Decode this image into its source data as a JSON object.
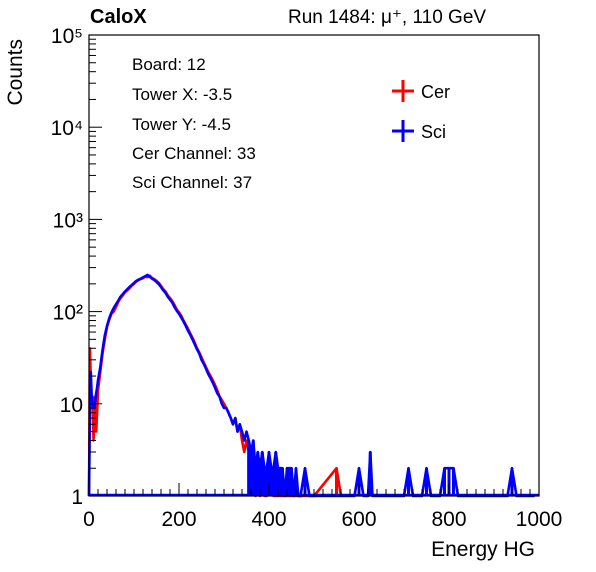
{
  "header": {
    "experiment": "CaloX",
    "run_info": "Run 1484:   μ⁺, 110 GeV"
  },
  "info_box": [
    "Board: 12",
    "Tower X: -3.5",
    "Tower Y: -4.5",
    "Cer Channel: 33",
    "Sci Channel: 37"
  ],
  "chart_data": {
    "type": "histogram",
    "xlabel": "Energy HG",
    "ylabel": "Counts",
    "xlim": [
      0,
      1000
    ],
    "ylim": [
      1,
      100000
    ],
    "yscale": "log",
    "xticks": [
      0,
      200,
      400,
      600,
      800,
      1000
    ],
    "xtick_labels": [
      "0",
      "200",
      "400",
      "600",
      "800",
      "1000"
    ],
    "yticks": [
      1,
      10,
      100,
      1000,
      10000,
      100000
    ],
    "ytick_labels": [
      "1",
      "10",
      "10²",
      "10³",
      "10⁴",
      "10⁵"
    ],
    "legend_position": "top-right",
    "series": [
      {
        "name": "Cer",
        "color": "#ff0000",
        "points": [
          [
            0,
            1
          ],
          [
            2,
            40
          ],
          [
            4,
            18
          ],
          [
            6,
            9
          ],
          [
            8,
            12
          ],
          [
            10,
            4
          ],
          [
            12,
            7
          ],
          [
            14,
            12
          ],
          [
            16,
            5
          ],
          [
            18,
            8
          ],
          [
            20,
            14
          ],
          [
            25,
            22
          ],
          [
            30,
            35
          ],
          [
            35,
            50
          ],
          [
            40,
            68
          ],
          [
            45,
            82
          ],
          [
            50,
            95
          ],
          [
            55,
            100
          ],
          [
            60,
            112
          ],
          [
            65,
            128
          ],
          [
            70,
            140
          ],
          [
            75,
            150
          ],
          [
            80,
            162
          ],
          [
            85,
            170
          ],
          [
            90,
            180
          ],
          [
            95,
            192
          ],
          [
            100,
            200
          ],
          [
            105,
            212
          ],
          [
            110,
            220
          ],
          [
            115,
            225
          ],
          [
            120,
            230
          ],
          [
            125,
            240
          ],
          [
            130,
            236
          ],
          [
            135,
            245
          ],
          [
            140,
            232
          ],
          [
            145,
            225
          ],
          [
            150,
            215
          ],
          [
            155,
            205
          ],
          [
            160,
            190
          ],
          [
            165,
            175
          ],
          [
            170,
            165
          ],
          [
            175,
            150
          ],
          [
            180,
            140
          ],
          [
            185,
            130
          ],
          [
            190,
            118
          ],
          [
            195,
            105
          ],
          [
            200,
            98
          ],
          [
            205,
            90
          ],
          [
            210,
            80
          ],
          [
            215,
            72
          ],
          [
            220,
            65
          ],
          [
            225,
            58
          ],
          [
            230,
            52
          ],
          [
            235,
            46
          ],
          [
            240,
            40
          ],
          [
            245,
            36
          ],
          [
            250,
            32
          ],
          [
            255,
            28
          ],
          [
            260,
            25
          ],
          [
            265,
            22
          ],
          [
            270,
            20
          ],
          [
            275,
            18
          ],
          [
            280,
            16
          ],
          [
            285,
            14
          ],
          [
            290,
            12
          ],
          [
            295,
            11
          ],
          [
            300,
            10
          ],
          [
            305,
            9
          ],
          [
            310,
            8
          ],
          [
            315,
            7
          ],
          [
            320,
            6
          ],
          [
            325,
            7
          ],
          [
            330,
            5
          ],
          [
            335,
            6
          ],
          [
            340,
            4
          ],
          [
            345,
            3
          ],
          [
            350,
            4
          ],
          [
            355,
            3
          ],
          [
            360,
            2
          ],
          [
            365,
            3
          ],
          [
            370,
            1
          ],
          [
            375,
            2
          ],
          [
            380,
            1
          ],
          [
            385,
            2
          ],
          [
            390,
            1
          ],
          [
            395,
            1
          ],
          [
            400,
            2
          ],
          [
            410,
            1
          ],
          [
            420,
            1
          ],
          [
            430,
            1
          ],
          [
            440,
            1
          ],
          [
            450,
            1
          ],
          [
            460,
            1
          ],
          [
            470,
            1
          ],
          [
            480,
            1
          ],
          [
            490,
            1
          ],
          [
            500,
            1
          ],
          [
            550,
            2
          ],
          [
            560,
            1
          ]
        ]
      },
      {
        "name": "Sci",
        "color": "#0000ff",
        "points": [
          [
            0,
            1
          ],
          [
            2,
            8
          ],
          [
            4,
            22
          ],
          [
            6,
            12
          ],
          [
            8,
            10
          ],
          [
            10,
            9
          ],
          [
            12,
            9
          ],
          [
            14,
            11
          ],
          [
            16,
            13
          ],
          [
            18,
            15
          ],
          [
            20,
            18
          ],
          [
            25,
            25
          ],
          [
            30,
            38
          ],
          [
            35,
            55
          ],
          [
            40,
            70
          ],
          [
            45,
            85
          ],
          [
            50,
            98
          ],
          [
            55,
            110
          ],
          [
            60,
            120
          ],
          [
            65,
            132
          ],
          [
            70,
            145
          ],
          [
            75,
            155
          ],
          [
            80,
            165
          ],
          [
            85,
            175
          ],
          [
            90,
            185
          ],
          [
            95,
            195
          ],
          [
            100,
            205
          ],
          [
            105,
            215
          ],
          [
            110,
            222
          ],
          [
            115,
            228
          ],
          [
            120,
            235
          ],
          [
            125,
            242
          ],
          [
            130,
            250
          ],
          [
            135,
            238
          ],
          [
            140,
            228
          ],
          [
            145,
            220
          ],
          [
            150,
            210
          ],
          [
            155,
            198
          ],
          [
            160,
            185
          ],
          [
            165,
            170
          ],
          [
            170,
            160
          ],
          [
            175,
            145
          ],
          [
            180,
            135
          ],
          [
            185,
            125
          ],
          [
            190,
            112
          ],
          [
            195,
            102
          ],
          [
            200,
            95
          ],
          [
            205,
            86
          ],
          [
            210,
            78
          ],
          [
            215,
            70
          ],
          [
            220,
            62
          ],
          [
            225,
            56
          ],
          [
            230,
            50
          ],
          [
            235,
            44
          ],
          [
            240,
            39
          ],
          [
            245,
            35
          ],
          [
            250,
            30
          ],
          [
            255,
            27
          ],
          [
            260,
            24
          ],
          [
            265,
            21
          ],
          [
            270,
            19
          ],
          [
            275,
            17
          ],
          [
            280,
            15
          ],
          [
            285,
            13
          ],
          [
            290,
            12
          ],
          [
            295,
            10
          ],
          [
            300,
            9
          ],
          [
            305,
            9
          ],
          [
            310,
            8
          ],
          [
            315,
            7
          ],
          [
            320,
            6
          ],
          [
            325,
            7
          ],
          [
            330,
            5
          ],
          [
            335,
            6
          ],
          [
            340,
            5
          ],
          [
            345,
            4
          ],
          [
            350,
            5
          ],
          [
            355,
            4
          ],
          [
            360,
            3
          ],
          [
            365,
            4
          ],
          [
            370,
            2
          ],
          [
            375,
            3
          ],
          [
            380,
            2
          ],
          [
            385,
            3
          ],
          [
            390,
            2
          ],
          [
            395,
            2
          ],
          [
            400,
            3
          ],
          [
            405,
            2
          ],
          [
            410,
            2
          ],
          [
            415,
            3
          ],
          [
            420,
            2
          ],
          [
            425,
            2
          ],
          [
            430,
            2
          ],
          [
            435,
            1
          ],
          [
            440,
            2
          ],
          [
            445,
            2
          ],
          [
            450,
            2
          ],
          [
            455,
            1
          ],
          [
            460,
            2
          ],
          [
            465,
            1
          ],
          [
            470,
            1
          ],
          [
            480,
            2
          ],
          [
            490,
            1
          ],
          [
            500,
            1
          ],
          [
            510,
            1
          ],
          [
            520,
            1
          ],
          [
            530,
            1
          ],
          [
            540,
            1
          ],
          [
            550,
            1
          ],
          [
            560,
            1
          ],
          [
            570,
            1
          ],
          [
            580,
            1
          ],
          [
            590,
            1
          ],
          [
            600,
            2
          ],
          [
            610,
            1
          ],
          [
            620,
            1
          ],
          [
            625,
            3
          ],
          [
            630,
            1
          ],
          [
            640,
            1
          ],
          [
            650,
            1
          ],
          [
            660,
            1
          ],
          [
            670,
            1
          ],
          [
            680,
            1
          ],
          [
            690,
            1
          ],
          [
            700,
            1
          ],
          [
            710,
            2
          ],
          [
            720,
            1
          ],
          [
            730,
            1
          ],
          [
            740,
            1
          ],
          [
            750,
            2
          ],
          [
            760,
            1
          ],
          [
            770,
            1
          ],
          [
            780,
            1
          ],
          [
            790,
            2
          ],
          [
            800,
            2
          ],
          [
            810,
            2
          ],
          [
            820,
            1
          ],
          [
            830,
            1
          ],
          [
            840,
            1
          ],
          [
            850,
            1
          ],
          [
            860,
            1
          ],
          [
            870,
            1
          ],
          [
            880,
            1
          ],
          [
            890,
            1
          ],
          [
            900,
            1
          ],
          [
            910,
            1
          ],
          [
            920,
            1
          ],
          [
            930,
            1
          ],
          [
            940,
            2
          ],
          [
            950,
            1
          ],
          [
            960,
            1
          ],
          [
            970,
            1
          ],
          [
            980,
            1
          ],
          [
            990,
            1
          ]
        ]
      }
    ]
  }
}
